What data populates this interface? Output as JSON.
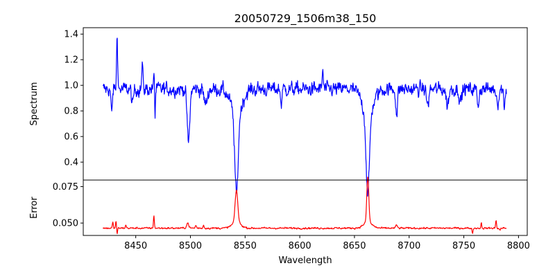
{
  "chart_data": [
    {
      "type": "line",
      "title": "20050729_1506m38_150",
      "ylabel": "Spectrum",
      "xlim": [
        8402,
        8808
      ],
      "ylim": [
        0.26,
        1.45
      ],
      "yticks": [
        0.4,
        0.6,
        0.8,
        1.0,
        1.2,
        1.4
      ],
      "ytick_labels": [
        "0.4",
        "0.6",
        "0.8",
        "1.0",
        "1.2",
        "1.4"
      ],
      "series": [
        {
          "color": "#0000ff",
          "base": 0.97,
          "noise": 0.045,
          "features": [
            {
              "x": 8428,
              "amp": -0.2,
              "w": 0.6
            },
            {
              "x": 8433,
              "amp": 0.43,
              "w": 0.5
            },
            {
              "x": 8447,
              "amp": -0.13,
              "w": 0.8
            },
            {
              "x": 8456,
              "amp": 0.2,
              "w": 0.5
            },
            {
              "x": 8467,
              "amp": 0.23,
              "w": 0.4
            },
            {
              "x": 8467.5,
              "amp": -0.3,
              "w": 0.4
            },
            {
              "x": 8498.2,
              "amp": -0.42,
              "w": 1.2
            },
            {
              "x": 8514,
              "amp": -0.12,
              "w": 1.5
            },
            {
              "x": 8542.1,
              "amp": -0.63,
              "w": 1.5
            },
            {
              "x": 8542.1,
              "amp": -0.2,
              "w": 5
            },
            {
              "x": 8583,
              "amp": -0.12,
              "w": 0.6
            },
            {
              "x": 8621,
              "amp": 0.15,
              "w": 0.5
            },
            {
              "x": 8662.2,
              "amp": -0.63,
              "w": 1.5
            },
            {
              "x": 8662.2,
              "amp": -0.2,
              "w": 5
            },
            {
              "x": 8688.6,
              "amp": -0.2,
              "w": 0.8
            },
            {
              "x": 8717,
              "amp": -0.13,
              "w": 1
            },
            {
              "x": 8735,
              "amp": -0.12,
              "w": 1.2
            },
            {
              "x": 8747,
              "amp": -0.1,
              "w": 1
            },
            {
              "x": 8763,
              "amp": -0.12,
              "w": 0.8
            },
            {
              "x": 8781,
              "amp": -0.1,
              "w": 1
            },
            {
              "x": 8787,
              "amp": -0.13,
              "w": 0.6
            }
          ]
        }
      ]
    },
    {
      "type": "line",
      "xlabel": "Wavelength",
      "ylabel": "Error",
      "xlim": [
        8402,
        8808
      ],
      "ylim": [
        0.0415,
        0.0795
      ],
      "xticks": [
        8450,
        8500,
        8550,
        8600,
        8650,
        8700,
        8750,
        8800
      ],
      "xtick_labels": [
        "8450",
        "8500",
        "8550",
        "8600",
        "8650",
        "8700",
        "8750",
        "8800"
      ],
      "yticks": [
        0.05,
        0.075
      ],
      "ytick_labels": [
        "0.050",
        "0.075"
      ],
      "series": [
        {
          "color": "#ff0000",
          "base": 0.0465,
          "noise": 0.0005,
          "features": [
            {
              "x": 8429,
              "amp": 0.004,
              "w": 0.4
            },
            {
              "x": 8432,
              "amp": 0.005,
              "w": 0.4
            },
            {
              "x": 8433,
              "amp": -0.004,
              "w": 0.4
            },
            {
              "x": 8441,
              "amp": 0.002,
              "w": 0.5
            },
            {
              "x": 8466.6,
              "amp": 0.009,
              "w": 0.4
            },
            {
              "x": 8497.5,
              "amp": 0.0035,
              "w": 1
            },
            {
              "x": 8505,
              "amp": 0.002,
              "w": 0.5
            },
            {
              "x": 8512,
              "amp": 0.002,
              "w": 0.5
            },
            {
              "x": 8542.1,
              "amp": 0.022,
              "w": 1.2
            },
            {
              "x": 8542.1,
              "amp": 0.004,
              "w": 4
            },
            {
              "x": 8662.2,
              "amp": 0.0315,
              "w": 0.9
            },
            {
              "x": 8662.2,
              "amp": 0.004,
              "w": 4
            },
            {
              "x": 8688.5,
              "amp": 0.002,
              "w": 0.8
            },
            {
              "x": 8758,
              "amp": -0.003,
              "w": 0.5
            },
            {
              "x": 8766,
              "amp": 0.0035,
              "w": 0.4
            },
            {
              "x": 8779.5,
              "amp": 0.0055,
              "w": 0.4
            },
            {
              "x": 8783,
              "amp": -0.0015,
              "w": 0.5
            }
          ]
        }
      ]
    }
  ]
}
